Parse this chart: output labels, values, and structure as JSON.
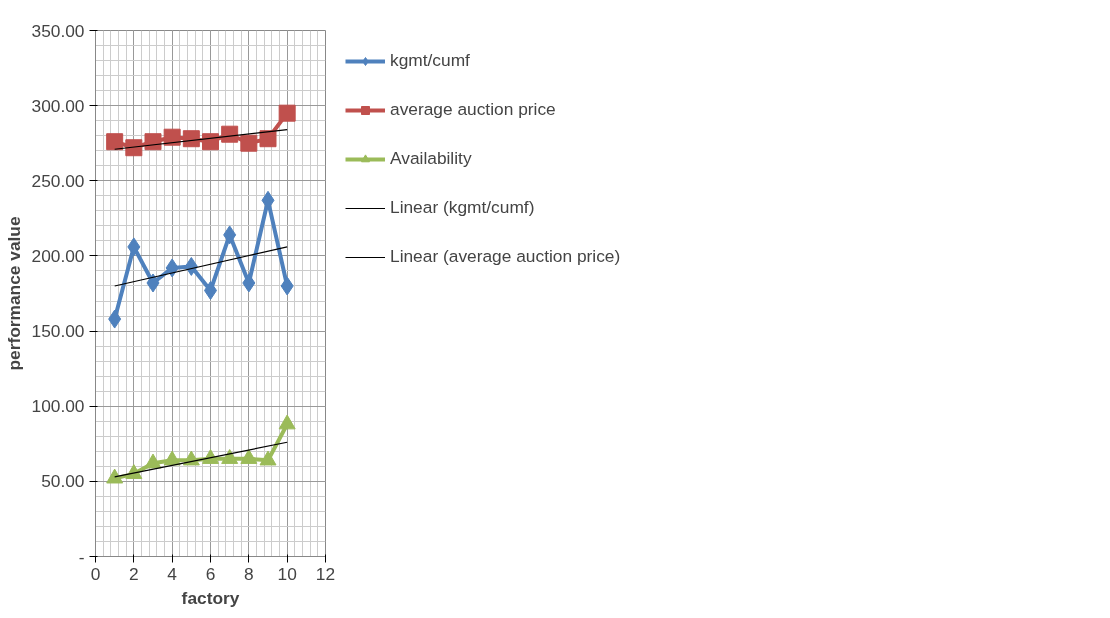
{
  "chart_data": {
    "type": "line",
    "xlabel": "factory",
    "ylabel": "performance value",
    "xlim": [
      0,
      12
    ],
    "xticks": [
      0,
      2,
      4,
      6,
      8,
      10,
      12
    ],
    "ylim": [
      0,
      350
    ],
    "yticks": [
      {
        "value": 0,
        "label": "-"
      },
      {
        "value": 50,
        "label": "50.00"
      },
      {
        "value": 100,
        "label": "100.00"
      },
      {
        "value": 150,
        "label": "150.00"
      },
      {
        "value": 200,
        "label": "200.00"
      },
      {
        "value": 250,
        "label": "250.00"
      },
      {
        "value": 300,
        "label": "300.00"
      },
      {
        "value": 350,
        "label": "350.00"
      }
    ],
    "grid": true,
    "legend": "right",
    "series": [
      {
        "name": "kgmt/cumf",
        "color": "#4f81bd",
        "marker": "diamond",
        "x": [
          1,
          2,
          3,
          4,
          5,
          6,
          7,
          8,
          9,
          10
        ],
        "values": [
          158,
          206,
          182,
          192,
          193,
          177,
          214,
          182,
          237,
          180
        ]
      },
      {
        "name": "average auction price",
        "color": "#c0504d",
        "marker": "square",
        "x": [
          1,
          2,
          3,
          4,
          5,
          6,
          7,
          8,
          9,
          10
        ],
        "values": [
          276,
          272,
          276,
          279,
          278,
          276,
          281,
          275,
          278,
          295
        ]
      },
      {
        "name": "Availability",
        "color": "#9bbb59",
        "marker": "triangle",
        "x": [
          1,
          2,
          3,
          4,
          5,
          6,
          7,
          8,
          9,
          10
        ],
        "values": [
          52,
          55,
          62,
          64,
          64,
          65,
          65,
          65,
          64,
          88
        ]
      },
      {
        "name": "Linear (kgmt/cumf)",
        "color": "#000000",
        "marker": "none",
        "x": [
          1,
          10
        ],
        "values": [
          180,
          206
        ]
      },
      {
        "name": "Linear (average auction price)",
        "color": "#000000",
        "marker": "none",
        "x": [
          1,
          10
        ],
        "values": [
          271,
          284
        ]
      },
      {
        "color": "#000000",
        "marker": "none",
        "x": [
          1,
          10
        ],
        "values": [
          53,
          76
        ]
      }
    ]
  }
}
